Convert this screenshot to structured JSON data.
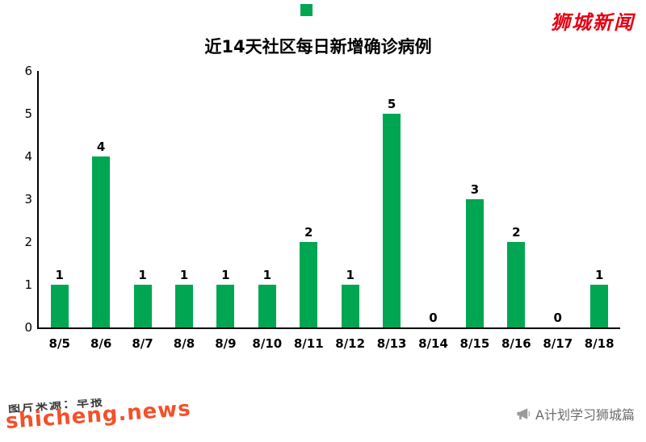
{
  "page": {
    "logo": "狮城新闻",
    "credit": "A计划学习狮城篇",
    "watermark": "shicheng.news",
    "watermark_fragment": "图片来源：早报"
  },
  "colors": {
    "bar": "#00a651",
    "logo_red": "#e60012",
    "watermark_orange": "#f4502a",
    "credit_gray": "#6b6b6b"
  },
  "chart_data": {
    "type": "bar",
    "title": "近14天社区每日新增确诊病例",
    "categories": [
      "8/5",
      "8/6",
      "8/7",
      "8/8",
      "8/9",
      "8/10",
      "8/11",
      "8/12",
      "8/13",
      "8/14",
      "8/15",
      "8/16",
      "8/17",
      "8/18"
    ],
    "values": [
      1,
      4,
      1,
      1,
      1,
      1,
      2,
      1,
      5,
      0,
      3,
      2,
      0,
      1
    ],
    "xlabel": "",
    "ylabel": "",
    "ylim": [
      0,
      6
    ],
    "yticks": [
      0,
      1,
      2,
      3,
      4,
      5,
      6
    ],
    "grid": false,
    "legend": false,
    "bar_color": "#00a651"
  }
}
